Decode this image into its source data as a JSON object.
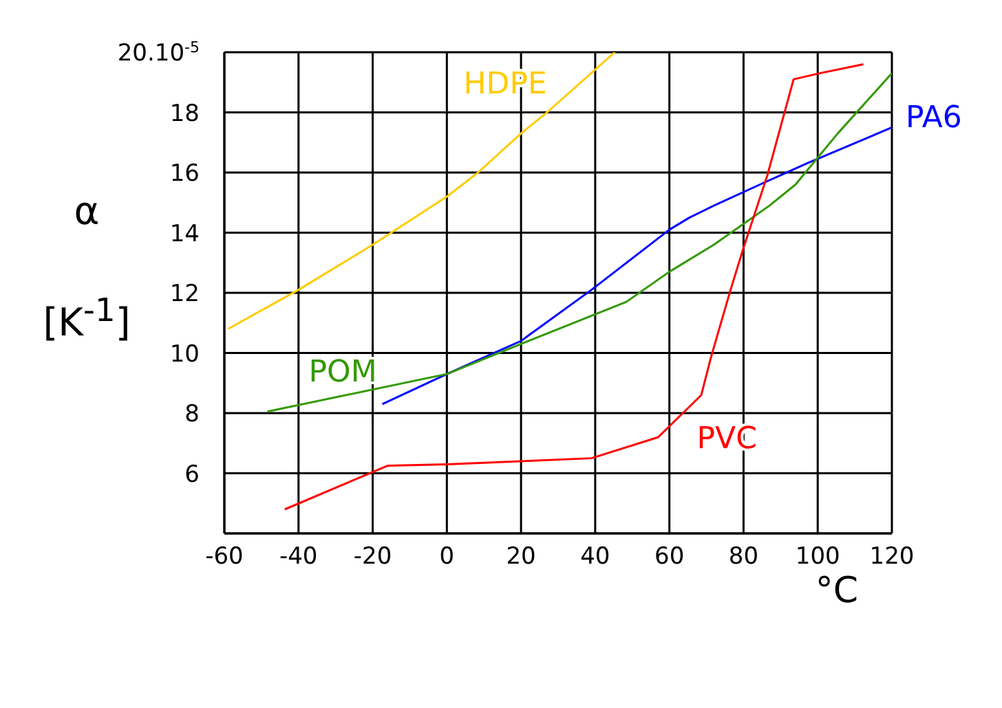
{
  "chart_data": {
    "type": "line",
    "xlabel": "°C",
    "ylabel": "α\n[K$^{-1}$]",
    "xlim": [
      -60,
      120
    ],
    "xticks": [
      -60,
      -40,
      -20,
      0,
      20,
      40,
      60,
      80,
      100,
      120
    ],
    "ylim": [
      4,
      20
    ],
    "yticks": [
      {
        "value": 4,
        "label": null
      },
      6,
      8,
      10,
      12,
      14,
      16,
      18,
      {
        "value": 20,
        "label": "20.10$^{-5}$"
      }
    ],
    "grid": true,
    "legend": false,
    "marker": "none",
    "line_style": "solid",
    "series": [
      {
        "name": "HDPE",
        "color": "#ffcc00",
        "x": [
          -59,
          -40,
          -20,
          0,
          8.4,
          20,
          27,
          45.3
        ],
        "values": [
          10.8,
          12.1,
          13.6,
          15.2,
          16,
          17.3,
          18,
          20
        ]
      },
      {
        "name": "PA6",
        "color": "#0000ff",
        "x": [
          -17.4,
          0,
          20,
          39,
          60,
          65.4,
          72,
          84.4,
          97,
          120
        ],
        "values": [
          8.3,
          9.3,
          10.4,
          12.1,
          14.1,
          14.5,
          14.9,
          15.6,
          16.3,
          17.5
        ]
      },
      {
        "name": "POM",
        "color": "#339900",
        "x": [
          -48.4,
          0,
          20,
          48.4,
          60,
          72,
          87,
          94,
          105.4,
          120
        ],
        "values": [
          8.05,
          9.3,
          10.3,
          11.7,
          12.7,
          13.6,
          14.9,
          15.6,
          17.3,
          19.3
        ]
      },
      {
        "name": "PVC",
        "color": "#ff0000",
        "x": [
          -43.7,
          -16,
          0,
          20,
          39,
          57,
          68.6,
          71.2,
          76.5,
          80,
          86.4,
          93.5,
          100.5,
          112.3
        ],
        "values": [
          4.8,
          6.25,
          6.3,
          6.4,
          6.5,
          7.2,
          8.6,
          9.85,
          12.1,
          13.5,
          15.9,
          19.1,
          19.3,
          19.6
        ]
      }
    ]
  }
}
